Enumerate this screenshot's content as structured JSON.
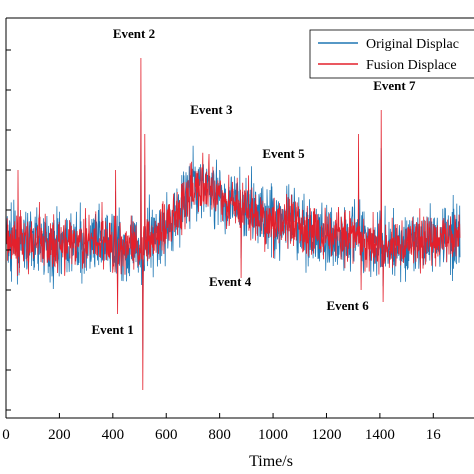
{
  "chart_data": {
    "type": "line",
    "title": "",
    "xlabel": "Time/s",
    "ylabel": "",
    "xlim": [
      0,
      1700
    ],
    "ylim": [
      -2.1,
      2.9
    ],
    "xticks": [
      "0",
      "200",
      "400",
      "600",
      "800",
      "1000",
      "1200",
      "1400",
      "16"
    ],
    "grid": false,
    "legend_position": "top-right",
    "series": [
      {
        "name": "Original Displac",
        "color": "#1f77b4"
      },
      {
        "name": "Fusion Displace",
        "color": "#e3202c"
      }
    ],
    "trend": {
      "x": [
        0,
        100,
        200,
        300,
        400,
        500,
        600,
        700,
        750,
        800,
        900,
        1000,
        1100,
        1200,
        1300,
        1400,
        1500,
        1600,
        1700
      ],
      "y": [
        0.1,
        0.1,
        0.05,
        0.1,
        0.05,
        0.0,
        0.3,
        0.75,
        0.8,
        0.65,
        0.5,
        0.35,
        0.3,
        0.15,
        0.2,
        0.05,
        0.05,
        0.15,
        0.2
      ]
    },
    "spikes": [
      {
        "x": 45,
        "y": 1.0
      },
      {
        "x": 125,
        "y": 0.6
      },
      {
        "x": 360,
        "y": 0.6
      },
      {
        "x": 410,
        "y": 1.0
      },
      {
        "x": 418,
        "y": -0.8
      },
      {
        "x": 505,
        "y": 2.4
      },
      {
        "x": 512,
        "y": -1.75
      },
      {
        "x": 520,
        "y": 1.45
      },
      {
        "x": 760,
        "y": 1.2
      },
      {
        "x": 880,
        "y": -0.35
      },
      {
        "x": 1050,
        "y": 0.7
      },
      {
        "x": 1320,
        "y": 1.45
      },
      {
        "x": 1330,
        "y": -0.5
      },
      {
        "x": 1405,
        "y": 1.75
      },
      {
        "x": 1412,
        "y": -0.65
      }
    ],
    "annotations": [
      {
        "text": "Event 1",
        "x": 320,
        "y": -1.05
      },
      {
        "text": "Event 2",
        "x": 400,
        "y": 2.65
      },
      {
        "text": "Event 3",
        "x": 690,
        "y": 1.7
      },
      {
        "text": "Event 4",
        "x": 760,
        "y": -0.45
      },
      {
        "text": "Event 5",
        "x": 960,
        "y": 1.15
      },
      {
        "text": "Event 6",
        "x": 1200,
        "y": -0.75
      },
      {
        "text": "Event 7",
        "x": 1375,
        "y": 2.0
      }
    ]
  }
}
